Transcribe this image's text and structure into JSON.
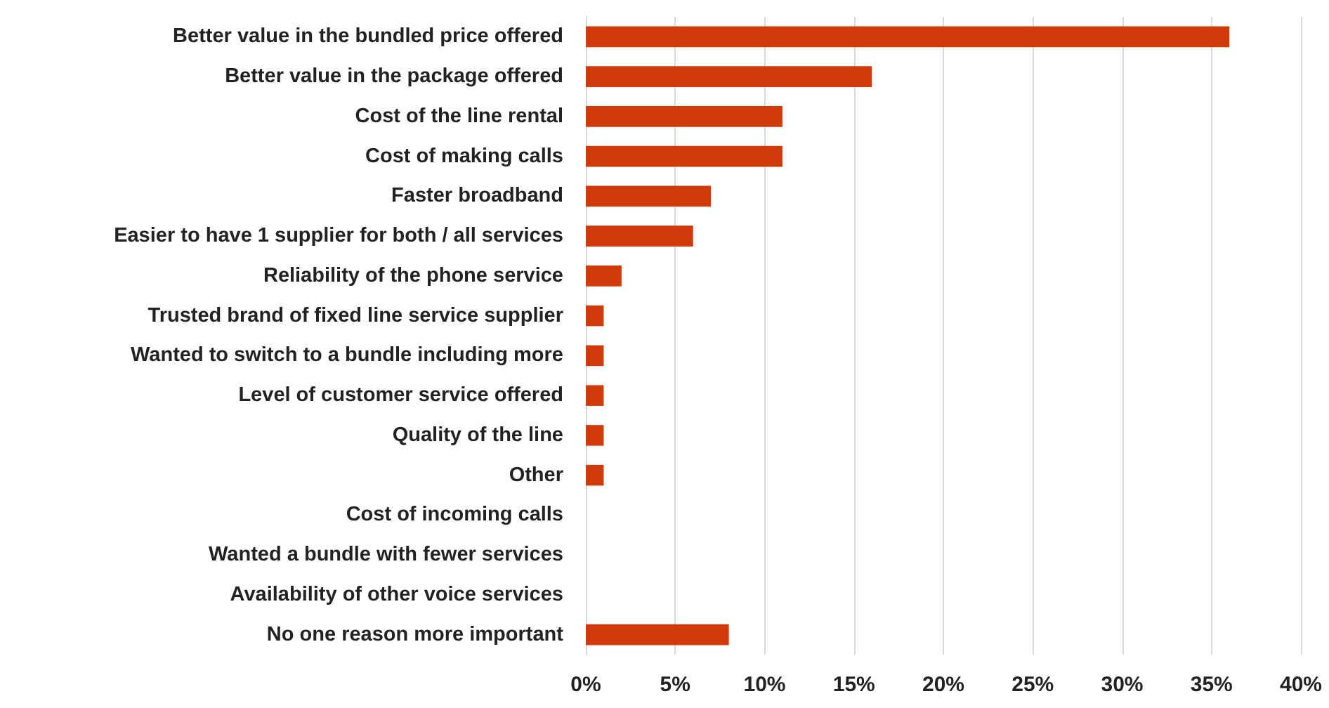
{
  "chart_data": {
    "type": "bar",
    "orientation": "horizontal",
    "categories": [
      "Better value in the bundled price offered",
      "Better value in the package offered",
      "Cost of the line rental",
      "Cost of making calls",
      "Faster broadband",
      "Easier to have 1 supplier for both / all services",
      "Reliability of the phone service",
      "Trusted brand of fixed line service supplier",
      "Wanted to switch to a bundle including more",
      "Level of customer service offered",
      "Quality of the line",
      "Other",
      "Cost of incoming calls",
      "Wanted a bundle with fewer services",
      "Availability of other voice services",
      "No one reason more important"
    ],
    "values": [
      36,
      16,
      11,
      11,
      7,
      6,
      2,
      1,
      1,
      1,
      1,
      1,
      0,
      0,
      0,
      8
    ],
    "color": "#d13b0b",
    "xlim": [
      0,
      40
    ],
    "xticks": [
      {
        "value": 0,
        "label": "0%"
      },
      {
        "value": 5,
        "label": "5%"
      },
      {
        "value": 10,
        "label": "10%"
      },
      {
        "value": 15,
        "label": "15%"
      },
      {
        "value": 20,
        "label": "20%"
      },
      {
        "value": 25,
        "label": "25%"
      },
      {
        "value": 30,
        "label": "30%"
      },
      {
        "value": 35,
        "label": "35%"
      },
      {
        "value": 40,
        "label": "40%"
      }
    ],
    "grid": "x"
  }
}
